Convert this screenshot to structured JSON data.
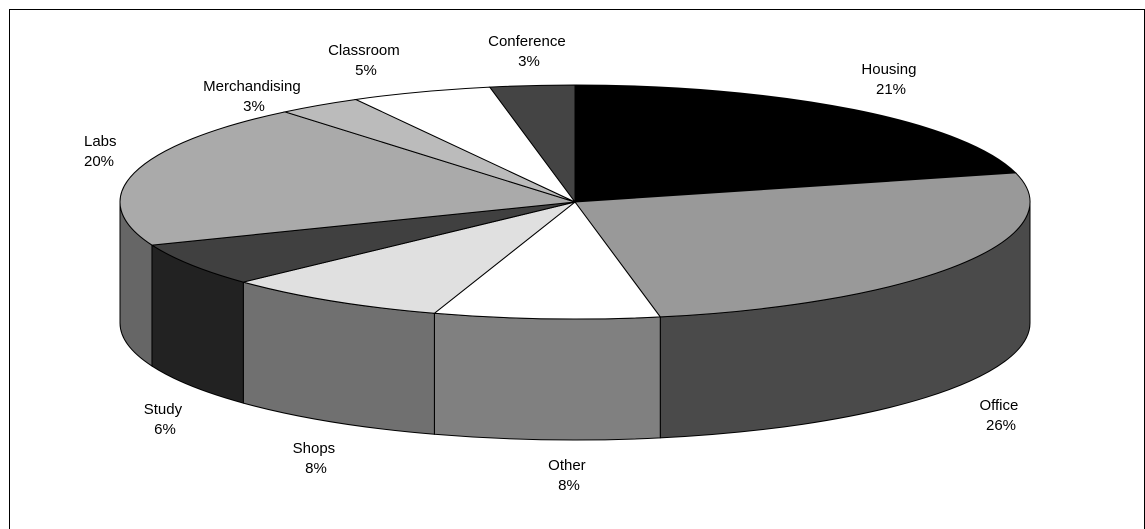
{
  "chart_data": {
    "type": "pie",
    "three_d": true,
    "legend": "none",
    "slices": [
      {
        "category": "Housing",
        "percent": "21%",
        "value": 21,
        "top_color": "#000000",
        "side_color": "#1a1a1a"
      },
      {
        "category": "Office",
        "percent": "26%",
        "value": 26,
        "top_color": "#999999",
        "side_color": "#4a4a4a"
      },
      {
        "category": "Other",
        "percent": "8%",
        "value": 8,
        "top_color": "#ffffff",
        "side_color": "#808080"
      },
      {
        "category": "Shops",
        "percent": "8%",
        "value": 8,
        "top_color": "#e0e0e0",
        "side_color": "#707070"
      },
      {
        "category": "Study",
        "percent": "6%",
        "value": 6,
        "top_color": "#404040",
        "side_color": "#222222"
      },
      {
        "category": "Labs",
        "percent": "20%",
        "value": 20,
        "top_color": "#aaaaaa",
        "side_color": "#666666"
      },
      {
        "category": "Merchandising",
        "percent": "3%",
        "value": 3,
        "top_color": "#bbbbbb",
        "side_color": "#777777"
      },
      {
        "category": "Classroom",
        "percent": "5%",
        "value": 5,
        "top_color": "#ffffff",
        "side_color": "#999999"
      },
      {
        "category": "Conference",
        "percent": "3%",
        "value": 3,
        "top_color": "#444444",
        "side_color": "#333333"
      }
    ]
  }
}
